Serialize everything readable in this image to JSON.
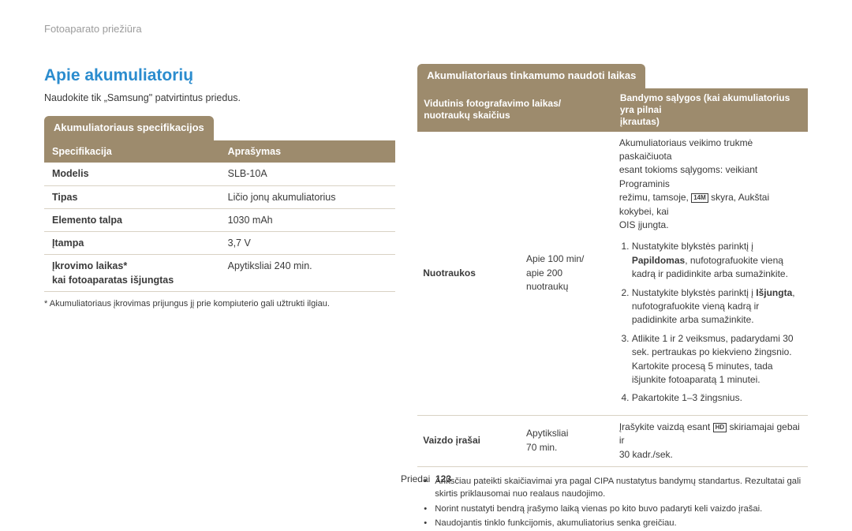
{
  "breadcrumb": "Fotoaparato priežiūra",
  "title": "Apie akumuliatorių",
  "subtext": "Naudokite tik „Samsung\" patvirtintus priedus.",
  "left": {
    "box_label": "Akumuliatoriaus specifikacijos",
    "header": {
      "col1": "Specifikacija",
      "col2": "Aprašymas"
    },
    "rows": [
      {
        "k": "Modelis",
        "v": "SLB-10A"
      },
      {
        "k": "Tipas",
        "v": "Ličio jonų akumuliatorius"
      },
      {
        "k": "Elemento talpa",
        "v": "1030 mAh"
      },
      {
        "k": "Įtampa",
        "v": "3,7 V"
      }
    ],
    "row5": {
      "k1": "Įkrovimo laikas*",
      "k2": "kai fotoaparatas išjungtas",
      "v": "Apytiksliai 240 min."
    },
    "footnote": "* Akumuliatoriaus įkrovimas prijungus jį prie kompiuterio gali užtrukti ilgiau."
  },
  "right": {
    "box_label": "Akumuliatoriaus tinkamumo naudoti laikas",
    "header": {
      "col1a": "Vidutinis fotografavimo laikas/",
      "col1b": "nuotraukų skaičius",
      "col2a": "Bandymo sąlygos (kai akumuliatorius yra pilnai",
      "col2b": "įkrautas)"
    },
    "r1": {
      "label": "Nuotraukos",
      "value_l1": "Apie 100 min/",
      "value_l2": "apie 200",
      "value_l3": "nuotraukų",
      "intro_l1": "Akumuliatoriaus veikimo trukmė paskaičiuota",
      "intro_l2": "esant tokioms sąlygoms: veikiant Programinis",
      "intro_l3_pre": "režimu, tamsoje, ",
      "intro_l3_icon": "14M",
      "intro_l3_post": " skyra, Aukštai kokybei, kai",
      "intro_l4": "OIS įjungta.",
      "s1_pre": "Nustatykite blykstės parinktį į ",
      "s1_bold": "Papildomas",
      "s1_post": ", nufotografuokite vieną kadrą ir padidinkite arba sumažinkite.",
      "s2_pre": "Nustatykite blykstės parinktį į ",
      "s2_bold": "Išjungta",
      "s2_post": ", nufotografuokite vieną kadrą ir padidinkite arba sumažinkite.",
      "s3": "Atlikite 1 ir 2 veiksmus, padarydami 30 sek. pertraukas po kiekvieno žingsnio. Kartokite procesą 5 minutes, tada išjunkite fotoaparatą 1 minutei.",
      "s4": "Pakartokite 1–3 žingsnius."
    },
    "r2": {
      "label": "Vaizdo įrašai",
      "value_l1": "Apytiksliai",
      "value_l2": "70 min.",
      "cond_pre": "Įrašykite vaizdą esant ",
      "cond_icon": "HD",
      "cond_post": " skiriamajai gebai ir",
      "cond_l2": "30 kadr./sek."
    },
    "bullets": {
      "b1": "Anksčiau pateikti skaičiavimai yra pagal CIPA nustatytus bandymų standartus. Rezultatai gali skirtis priklausomai nuo realaus naudojimo.",
      "b2": "Norint nustatyti bendrą įrašymo laiką vienas po kito buvo padaryti keli vaizdo įrašai.",
      "b3": "Naudojantis tinklo funkcijomis, akumuliatorius senka greičiau."
    }
  },
  "footer": {
    "section": "Priedai",
    "page": "123"
  }
}
